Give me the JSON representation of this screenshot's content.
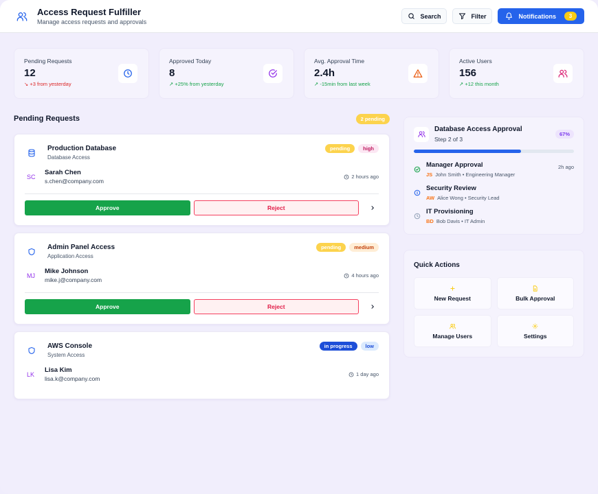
{
  "header": {
    "title": "Access Request Fulfiller",
    "subtitle": "Manage access requests and approvals",
    "search_label": "Search",
    "filter_label": "Filter",
    "notifications_label": "Notifications",
    "notifications_count": "3"
  },
  "stats": [
    {
      "label": "Pending Requests",
      "value": "12",
      "trend": "↘ +3 from yesterday",
      "icon": "clock-icon"
    },
    {
      "label": "Approved Today",
      "value": "8",
      "trend": "↗ +25% from yesterday",
      "icon": "check-circle-icon"
    },
    {
      "label": "Avg. Approval Time",
      "value": "2.4h",
      "trend": "↗ -15min from last week",
      "icon": "warning-icon"
    },
    {
      "label": "Active Users",
      "value": "156",
      "trend": "↗ +12 this month",
      "icon": "users-icon"
    }
  ],
  "pending": {
    "title": "Pending Requests",
    "count_label": "2 pending",
    "requests": [
      {
        "title": "Production Database",
        "type": "Database Access",
        "status": "pending",
        "priority": "high",
        "initials": "SC",
        "name": "Sarah Chen",
        "email": "s.chen@company.com",
        "time": "2 hours ago",
        "approve_label": "Approve",
        "reject_label": "Reject"
      },
      {
        "title": "Admin Panel Access",
        "type": "Application Access",
        "status": "pending",
        "priority": "medium",
        "initials": "MJ",
        "name": "Mike Johnson",
        "email": "mike.j@company.com",
        "time": "4 hours ago",
        "approve_label": "Approve",
        "reject_label": "Reject"
      },
      {
        "title": "AWS Console",
        "type": "System Access",
        "status": "in progress",
        "priority": "low",
        "initials": "LK",
        "name": "Lisa Kim",
        "email": "lisa.k@company.com",
        "time": "1 day ago"
      }
    ]
  },
  "workflow": {
    "title": "Database Access Approval",
    "step_label": "Step 2 of 3",
    "percent_label": "67%",
    "progress": 0.67,
    "steps": [
      {
        "name": "Manager Approval",
        "initials": "JS",
        "person": "John Smith • Engineering Manager",
        "time": "2h ago",
        "state": "done"
      },
      {
        "name": "Security Review",
        "initials": "AW",
        "person": "Alice Wong • Security Lead",
        "time": "",
        "state": "current"
      },
      {
        "name": "IT Provisioning",
        "initials": "BD",
        "person": "Bob Davis • IT Admin",
        "time": "",
        "state": "pending"
      }
    ]
  },
  "quick_actions": {
    "title": "Quick Actions",
    "items": [
      {
        "label": "New Request",
        "icon": "plus-icon"
      },
      {
        "label": "Bulk Approval",
        "icon": "file-icon"
      },
      {
        "label": "Manage Users",
        "icon": "users-icon"
      },
      {
        "label": "Settings",
        "icon": "gear-icon"
      }
    ]
  },
  "colors": {
    "accent": "#2563eb",
    "approve": "#16a34a",
    "reject": "#e11d48",
    "pending": "#fcd34d"
  }
}
